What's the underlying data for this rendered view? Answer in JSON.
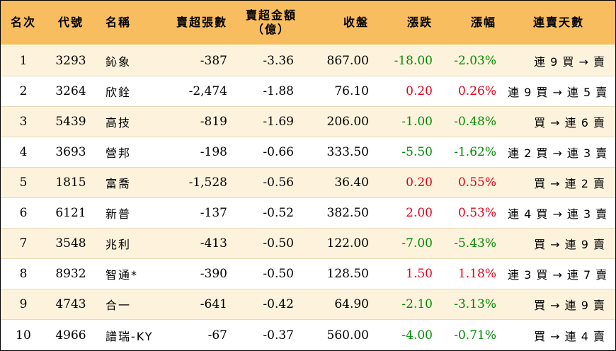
{
  "header": {
    "rank": "名次",
    "code": "代號",
    "name": "名稱",
    "net_sell_lots": "賣超張數",
    "net_sell_amount_line1": "賣超金額",
    "net_sell_amount_line2": "（億）",
    "close": "收盤",
    "change": "漲跌",
    "change_pct": "漲幅",
    "streak": "連賣天數"
  },
  "colors": {
    "header_bg": "#F8BD5E",
    "odd_row_bg": "#FDF2DC",
    "even_row_bg": "#FFFFFF",
    "up": "#E0001B",
    "down": "#008A00"
  },
  "rows": [
    {
      "rank": "1",
      "code": "3293",
      "name": "鈊象",
      "lots": "-387",
      "amount": "-3.36",
      "close": "867.00",
      "change": "-18.00",
      "pct": "-2.03%",
      "dir": "down",
      "streak": "連 9 買 → 賣"
    },
    {
      "rank": "2",
      "code": "3264",
      "name": "欣銓",
      "lots": "-2,474",
      "amount": "-1.88",
      "close": "76.10",
      "change": "0.20",
      "pct": "0.26%",
      "dir": "up",
      "streak": "連 9 買 → 連 5 賣"
    },
    {
      "rank": "3",
      "code": "5439",
      "name": "高技",
      "lots": "-819",
      "amount": "-1.69",
      "close": "206.00",
      "change": "-1.00",
      "pct": "-0.48%",
      "dir": "down",
      "streak": "買 → 連 6 賣"
    },
    {
      "rank": "4",
      "code": "3693",
      "name": "營邦",
      "lots": "-198",
      "amount": "-0.66",
      "close": "333.50",
      "change": "-5.50",
      "pct": "-1.62%",
      "dir": "down",
      "streak": "連 2 買 → 連 3 賣"
    },
    {
      "rank": "5",
      "code": "1815",
      "name": "富喬",
      "lots": "-1,528",
      "amount": "-0.56",
      "close": "36.40",
      "change": "0.20",
      "pct": "0.55%",
      "dir": "up",
      "streak": "買 → 連 2 賣"
    },
    {
      "rank": "6",
      "code": "6121",
      "name": "新普",
      "lots": "-137",
      "amount": "-0.52",
      "close": "382.50",
      "change": "2.00",
      "pct": "0.53%",
      "dir": "up",
      "streak": "連 4 買 → 連 3 賣"
    },
    {
      "rank": "7",
      "code": "3548",
      "name": "兆利",
      "lots": "-413",
      "amount": "-0.50",
      "close": "122.00",
      "change": "-7.00",
      "pct": "-5.43%",
      "dir": "down",
      "streak": "買 → 連 9 賣"
    },
    {
      "rank": "8",
      "code": "8932",
      "name": "智通*",
      "lots": "-390",
      "amount": "-0.50",
      "close": "128.50",
      "change": "1.50",
      "pct": "1.18%",
      "dir": "up",
      "streak": "連 3 買 → 連 7 賣"
    },
    {
      "rank": "9",
      "code": "4743",
      "name": "合一",
      "lots": "-641",
      "amount": "-0.42",
      "close": "64.90",
      "change": "-2.10",
      "pct": "-3.13%",
      "dir": "down",
      "streak": "買 → 連 9 賣"
    },
    {
      "rank": "10",
      "code": "4966",
      "name": "譜瑞-KY",
      "lots": "-67",
      "amount": "-0.37",
      "close": "560.00",
      "change": "-4.00",
      "pct": "-0.71%",
      "dir": "down",
      "streak": "買 → 連 4 賣"
    }
  ]
}
